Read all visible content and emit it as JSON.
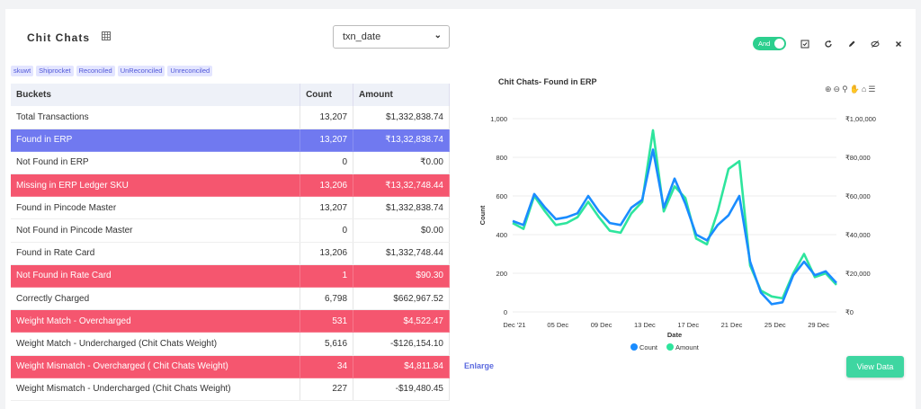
{
  "header": {
    "title": "Chit Chats",
    "select_value": "txn_date"
  },
  "chips": [
    "skuwt",
    "Shiprocket",
    "Reconciled",
    "UnReconciled",
    "Unreconciled"
  ],
  "table": {
    "columns": [
      "Buckets",
      "Count",
      "Amount"
    ],
    "rows": [
      {
        "bucket": "Total Transactions",
        "count": "13,207",
        "amount": "$1,332,838.74",
        "style": ""
      },
      {
        "bucket": "Found in ERP",
        "count": "13,207",
        "amount": "₹13,32,838.74",
        "style": "blue"
      },
      {
        "bucket": "Not Found in ERP",
        "count": "0",
        "amount": "₹0.00",
        "style": ""
      },
      {
        "bucket": "Missing in ERP Ledger SKU",
        "count": "13,206",
        "amount": "₹13,32,748.44",
        "style": "red"
      },
      {
        "bucket": "Found in Pincode Master",
        "count": "13,207",
        "amount": "$1,332,838.74",
        "style": ""
      },
      {
        "bucket": "Not Found in Pincode Master",
        "count": "0",
        "amount": "$0.00",
        "style": ""
      },
      {
        "bucket": "Found in Rate Card",
        "count": "13,206",
        "amount": "$1,332,748.44",
        "style": ""
      },
      {
        "bucket": "Not Found in Rate Card",
        "count": "1",
        "amount": "$90.30",
        "style": "red"
      },
      {
        "bucket": "Correctly Charged",
        "count": "6,798",
        "amount": "$662,967.52",
        "style": ""
      },
      {
        "bucket": "Weight Match - Overcharged",
        "count": "531",
        "amount": "$4,522.47",
        "style": "red"
      },
      {
        "bucket": "Weight Match - Undercharged (Chit Chats Weight)",
        "count": "5,616",
        "amount": "-$126,154.10",
        "style": ""
      },
      {
        "bucket": "Weight Mismatch - Overcharged ( Chit Chats Weight)",
        "count": "34",
        "amount": "$4,811.84",
        "style": "red"
      },
      {
        "bucket": "Weight Mismatch - Undercharged (Chit Chats Weight)",
        "count": "227",
        "amount": "-$19,480.45",
        "style": ""
      }
    ]
  },
  "toolbar": {
    "toggle_label": "And"
  },
  "chart_title": "Chit Chats- Found in ERP",
  "enlarge_label": "Enlarge",
  "view_data_label": "View Data",
  "colors": {
    "count": "#1a8cff",
    "amount": "#2ee59d",
    "blue_row": "#7079f0",
    "red_row": "#f5566f"
  },
  "chart_data": {
    "type": "line",
    "xlabel": "Date",
    "ylabel_left": "Count",
    "ylabel_right": "Amount",
    "x_ticks": [
      "Dec '21",
      "05 Dec",
      "09 Dec",
      "13 Dec",
      "17 Dec",
      "21 Dec",
      "25 Dec",
      "29 Dec"
    ],
    "y_left_ticks": [
      "0",
      "200",
      "400",
      "600",
      "800",
      "1,000"
    ],
    "y_right_ticks": [
      "₹0",
      "₹20,000",
      "₹40,000",
      "₹60,000",
      "₹80,000",
      "₹1,00,000"
    ],
    "ylim_left": [
      0,
      1000
    ],
    "series": [
      {
        "name": "Count",
        "values": [
          470,
          450,
          610,
          540,
          480,
          490,
          510,
          600,
          520,
          460,
          450,
          540,
          580,
          840,
          540,
          690,
          560,
          400,
          370,
          450,
          500,
          600,
          260,
          100,
          40,
          50,
          190,
          260,
          190,
          210,
          150
        ]
      },
      {
        "name": "Amount",
        "values": [
          460,
          430,
          600,
          520,
          450,
          460,
          490,
          570,
          490,
          420,
          410,
          510,
          570,
          940,
          520,
          650,
          590,
          380,
          350,
          520,
          740,
          780,
          240,
          110,
          80,
          70,
          200,
          300,
          180,
          200,
          140
        ]
      }
    ]
  }
}
